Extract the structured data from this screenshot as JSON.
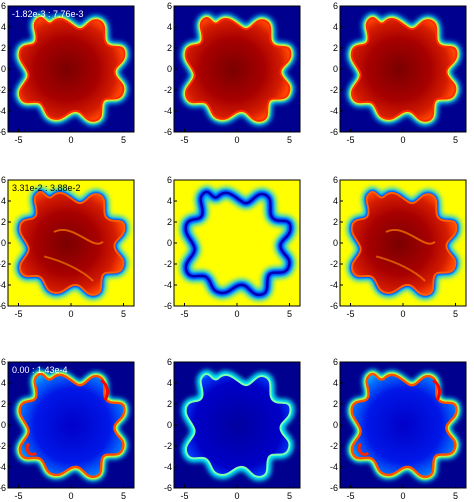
{
  "chart_data": {
    "type": "heatmap",
    "layout": "3x3 grid of panels",
    "colormap": "jet",
    "panel_colormap_range": "each panel row has its own color scale; annotation printed in first column",
    "xlim": [
      -6,
      6
    ],
    "ylim": [
      -6,
      6
    ],
    "x_ticks": [
      "-5",
      "0",
      "5"
    ],
    "y_ticks": [
      "6",
      "4",
      "2",
      "0",
      "-2",
      "-4",
      "-6"
    ],
    "rows": [
      {
        "range_label": "-1.82e-3 : 7.76e-3",
        "background": "low (dark blue)",
        "panels": [
          "filled blob, high interior",
          "filled blob, high interior",
          "filled blob, high interior"
        ]
      },
      {
        "range_label": "3.31e-2 : 3.88e-2",
        "background": "mid (yellow)",
        "panels": [
          "filled blob, high interior",
          "ring, low boundary",
          "filled blob, high interior"
        ]
      },
      {
        "range_label": "0.00 : 1.43e-4",
        "background": "low (dark blue)",
        "panels": [
          "blob with hot rim",
          "blob with cyan rim",
          "blob with hot rim"
        ]
      }
    ]
  }
}
